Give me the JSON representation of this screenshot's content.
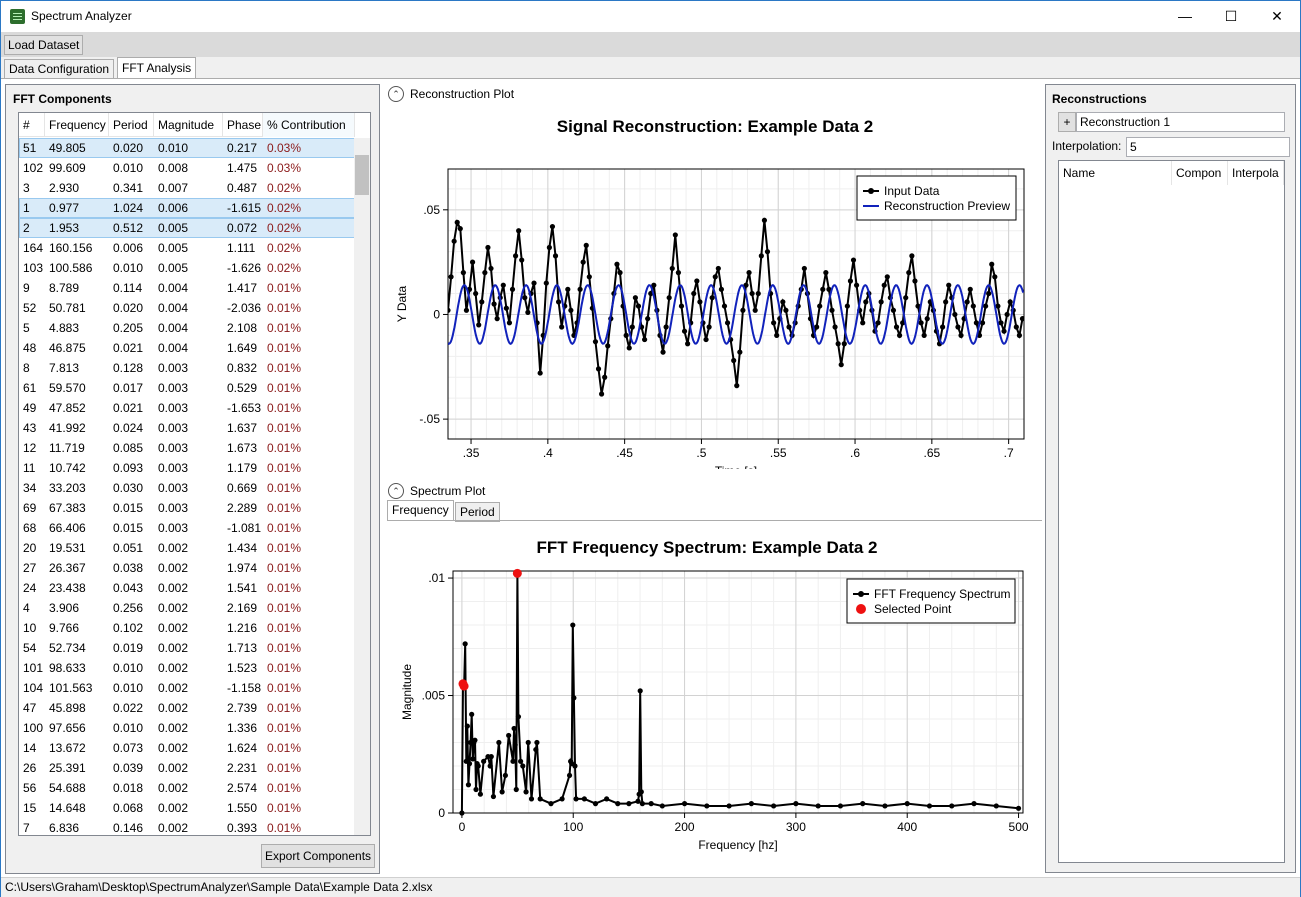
{
  "window": {
    "title": "Spectrum Analyzer",
    "min_glyph": "—",
    "max_glyph": "☐",
    "close_glyph": "✕"
  },
  "toolbar": {
    "load_label": "Load Dataset"
  },
  "tabs": [
    {
      "label": "Data Configuration"
    },
    {
      "label": "FFT Analysis"
    }
  ],
  "fft_panel": {
    "title": "FFT Components",
    "columns": [
      "#",
      "Frequency",
      "Period",
      "Magnitude",
      "Phase",
      "% Contribution"
    ],
    "rows": [
      [
        "51",
        "49.805",
        "0.020",
        "0.010",
        "0.217",
        "0.03%"
      ],
      [
        "102",
        "99.609",
        "0.010",
        "0.008",
        "1.475",
        "0.03%"
      ],
      [
        "3",
        "2.930",
        "0.341",
        "0.007",
        "0.487",
        "0.02%"
      ],
      [
        "1",
        "0.977",
        "1.024",
        "0.006",
        "-1.615",
        "0.02%"
      ],
      [
        "2",
        "1.953",
        "0.512",
        "0.005",
        "0.072",
        "0.02%"
      ],
      [
        "164",
        "160.156",
        "0.006",
        "0.005",
        "1.111",
        "0.02%"
      ],
      [
        "103",
        "100.586",
        "0.010",
        "0.005",
        "-1.626",
        "0.02%"
      ],
      [
        "9",
        "8.789",
        "0.114",
        "0.004",
        "1.417",
        "0.01%"
      ],
      [
        "52",
        "50.781",
        "0.020",
        "0.004",
        "-2.036",
        "0.01%"
      ],
      [
        "5",
        "4.883",
        "0.205",
        "0.004",
        "2.108",
        "0.01%"
      ],
      [
        "48",
        "46.875",
        "0.021",
        "0.004",
        "1.649",
        "0.01%"
      ],
      [
        "8",
        "7.813",
        "0.128",
        "0.003",
        "0.832",
        "0.01%"
      ],
      [
        "61",
        "59.570",
        "0.017",
        "0.003",
        "0.529",
        "0.01%"
      ],
      [
        "49",
        "47.852",
        "0.021",
        "0.003",
        "-1.653",
        "0.01%"
      ],
      [
        "43",
        "41.992",
        "0.024",
        "0.003",
        "1.637",
        "0.01%"
      ],
      [
        "12",
        "11.719",
        "0.085",
        "0.003",
        "1.673",
        "0.01%"
      ],
      [
        "11",
        "10.742",
        "0.093",
        "0.003",
        "1.179",
        "0.01%"
      ],
      [
        "34",
        "33.203",
        "0.030",
        "0.003",
        "0.669",
        "0.01%"
      ],
      [
        "69",
        "67.383",
        "0.015",
        "0.003",
        "2.289",
        "0.01%"
      ],
      [
        "68",
        "66.406",
        "0.015",
        "0.003",
        "-1.081",
        "0.01%"
      ],
      [
        "20",
        "19.531",
        "0.051",
        "0.002",
        "1.434",
        "0.01%"
      ],
      [
        "27",
        "26.367",
        "0.038",
        "0.002",
        "1.974",
        "0.01%"
      ],
      [
        "24",
        "23.438",
        "0.043",
        "0.002",
        "1.541",
        "0.01%"
      ],
      [
        "4",
        "3.906",
        "0.256",
        "0.002",
        "2.169",
        "0.01%"
      ],
      [
        "10",
        "9.766",
        "0.102",
        "0.002",
        "1.216",
        "0.01%"
      ],
      [
        "54",
        "52.734",
        "0.019",
        "0.002",
        "1.713",
        "0.01%"
      ],
      [
        "101",
        "98.633",
        "0.010",
        "0.002",
        "1.523",
        "0.01%"
      ],
      [
        "104",
        "101.563",
        "0.010",
        "0.002",
        "-1.158",
        "0.01%"
      ],
      [
        "47",
        "45.898",
        "0.022",
        "0.002",
        "2.739",
        "0.01%"
      ],
      [
        "100",
        "97.656",
        "0.010",
        "0.002",
        "1.336",
        "0.01%"
      ],
      [
        "14",
        "13.672",
        "0.073",
        "0.002",
        "1.624",
        "0.01%"
      ],
      [
        "26",
        "25.391",
        "0.039",
        "0.002",
        "2.231",
        "0.01%"
      ],
      [
        "56",
        "54.688",
        "0.018",
        "0.002",
        "2.574",
        "0.01%"
      ],
      [
        "15",
        "14.648",
        "0.068",
        "0.002",
        "1.550",
        "0.01%"
      ],
      [
        "7",
        "6.836",
        "0.146",
        "0.002",
        "0.393",
        "0.01%"
      ]
    ],
    "selected_rows": [
      0,
      3,
      4
    ],
    "export_label": "Export Components"
  },
  "recon_section": {
    "expander_label": "Reconstruction Plot"
  },
  "spectrum_section": {
    "expander_label": "Spectrum Plot",
    "tabs": [
      "Frequency",
      "Period"
    ]
  },
  "chart_data": [
    {
      "type": "line",
      "title": "Signal Reconstruction: Example Data 2",
      "xlabel": "Time [s]",
      "ylabel": "Y Data",
      "xlim": [
        0.335,
        0.71
      ],
      "ylim": [
        -0.0595,
        0.0695
      ],
      "xticks": [
        0.35,
        0.4,
        0.45,
        0.5,
        0.55,
        0.6,
        0.65,
        0.7
      ],
      "yticks": [
        -0.05,
        0,
        0.05
      ],
      "grid": true,
      "legend_position": "top-right",
      "series": [
        {
          "name": "Input Data",
          "color": "#000000",
          "markers": true,
          "x": [
            0.335,
            0.337,
            0.339,
            0.341,
            0.343,
            0.345,
            0.347,
            0.349,
            0.351,
            0.353,
            0.355,
            0.357,
            0.359,
            0.361,
            0.363,
            0.365,
            0.367,
            0.369,
            0.371,
            0.373,
            0.375,
            0.377,
            0.379,
            0.381,
            0.383,
            0.385,
            0.387,
            0.389,
            0.391,
            0.393,
            0.395,
            0.397,
            0.399,
            0.401,
            0.403,
            0.405,
            0.407,
            0.409,
            0.411,
            0.413,
            0.415,
            0.417,
            0.419,
            0.421,
            0.423,
            0.425,
            0.427,
            0.429,
            0.431,
            0.433,
            0.435,
            0.437,
            0.439,
            0.441,
            0.443,
            0.445,
            0.447,
            0.449,
            0.451,
            0.453,
            0.455,
            0.457,
            0.459,
            0.461,
            0.463,
            0.465,
            0.467,
            0.469,
            0.471,
            0.473,
            0.475,
            0.477,
            0.479,
            0.481,
            0.483,
            0.485,
            0.487,
            0.489,
            0.491,
            0.493,
            0.495,
            0.497,
            0.499,
            0.501,
            0.503,
            0.505,
            0.507,
            0.509,
            0.511,
            0.513,
            0.515,
            0.517,
            0.519,
            0.521,
            0.523,
            0.525,
            0.527,
            0.529,
            0.531,
            0.533,
            0.535,
            0.537,
            0.539,
            0.541,
            0.543,
            0.545,
            0.547,
            0.549,
            0.551,
            0.553,
            0.555,
            0.557,
            0.559,
            0.561,
            0.563,
            0.565,
            0.567,
            0.569,
            0.571,
            0.573,
            0.575,
            0.577,
            0.579,
            0.581,
            0.583,
            0.585,
            0.587,
            0.589,
            0.591,
            0.593,
            0.595,
            0.597,
            0.599,
            0.601,
            0.603,
            0.605,
            0.607,
            0.609,
            0.611,
            0.613,
            0.615,
            0.617,
            0.619,
            0.621,
            0.623,
            0.625,
            0.627,
            0.629,
            0.631,
            0.633,
            0.635,
            0.637,
            0.639,
            0.641,
            0.643,
            0.645,
            0.647,
            0.649,
            0.651,
            0.653,
            0.655,
            0.657,
            0.659,
            0.661,
            0.663,
            0.665,
            0.667,
            0.669,
            0.671,
            0.673,
            0.675,
            0.677,
            0.679,
            0.681,
            0.683,
            0.685,
            0.687,
            0.689,
            0.691,
            0.693,
            0.695,
            0.697,
            0.699,
            0.701,
            0.703,
            0.705,
            0.707,
            0.709
          ],
          "y": [
            0.002,
            0.018,
            0.035,
            0.044,
            0.041,
            0.02,
            0.002,
            0.012,
            0.025,
            0.01,
            -0.005,
            0.006,
            0.02,
            0.032,
            0.022,
            0.005,
            -0.002,
            0.008,
            0.014,
            0.003,
            -0.004,
            0.012,
            0.028,
            0.04,
            0.026,
            0.008,
            0.001,
            0.01,
            0.015,
            -0.004,
            -0.028,
            -0.01,
            0.015,
            0.032,
            0.042,
            0.028,
            0.006,
            -0.006,
            0.004,
            0.012,
            0.002,
            -0.01,
            -0.004,
            0.012,
            0.025,
            0.033,
            0.018,
            0.003,
            -0.013,
            -0.026,
            -0.038,
            -0.03,
            -0.015,
            -0.002,
            0.01,
            0.024,
            0.02,
            0.004,
            -0.01,
            -0.016,
            -0.006,
            0.008,
            0.004,
            -0.006,
            -0.012,
            -0.002,
            0.01,
            0.014,
            0.002,
            -0.01,
            -0.018,
            -0.006,
            0.008,
            0.022,
            0.038,
            0.02,
            0.004,
            -0.008,
            -0.014,
            -0.004,
            0.01,
            0.016,
            0.006,
            -0.004,
            -0.012,
            -0.006,
            0.008,
            0.018,
            0.022,
            0.012,
            0.004,
            -0.004,
            -0.012,
            -0.022,
            -0.034,
            -0.018,
            0.002,
            0.014,
            0.02,
            0.01,
            0.002,
            0.01,
            0.028,
            0.045,
            0.03,
            0.01,
            -0.004,
            -0.01,
            -0.002,
            0.006,
            0.002,
            -0.006,
            -0.01,
            -0.004,
            0.004,
            0.012,
            0.022,
            0.01,
            -0.002,
            -0.01,
            -0.006,
            0.004,
            0.012,
            0.02,
            0.012,
            0.002,
            -0.006,
            -0.014,
            -0.024,
            -0.014,
            0.004,
            0.016,
            0.026,
            0.014,
            0.002,
            -0.004,
            0.006,
            0.01,
            0.002,
            -0.008,
            -0.004,
            0.006,
            0.014,
            0.018,
            0.008,
            0.002,
            -0.006,
            -0.01,
            -0.004,
            0.008,
            0.02,
            0.028,
            0.016,
            0.004,
            -0.004,
            -0.01,
            -0.002,
            0.006,
            0.002,
            -0.008,
            -0.014,
            -0.006,
            0.006,
            0.014,
            0.008,
            0.0,
            -0.006,
            -0.01,
            -0.002,
            0.006,
            0.012,
            0.004,
            -0.004,
            -0.01,
            -0.004,
            0.004,
            0.01,
            0.024,
            0.018,
            0.004,
            -0.004,
            -0.008,
            0.0,
            0.006,
            0.002,
            -0.006,
            -0.01,
            -0.002
          ]
        },
        {
          "name": "Reconstruction Preview",
          "color": "#1122bb",
          "markers": false,
          "amplitude": 0.014,
          "frequency_hz": 49.805,
          "phase": 0.217
        }
      ]
    },
    {
      "type": "line",
      "title": "FFT Frequency Spectrum: Example Data 2",
      "xlabel": "Frequency [hz]",
      "ylabel": "Magnitude",
      "xlim": [
        -8,
        504
      ],
      "ylim": [
        0,
        0.0103
      ],
      "xticks": [
        0,
        100,
        200,
        300,
        400,
        500
      ],
      "yticks": [
        0,
        0.005,
        0.01
      ],
      "grid": true,
      "legend_position": "top-right",
      "series": [
        {
          "name": "FFT Frequency Spectrum",
          "color": "#000000",
          "markers": true,
          "x": [
            0,
            0.977,
            1.953,
            2.93,
            3.906,
            4.883,
            5.859,
            6.836,
            7.813,
            8.789,
            9.766,
            10.742,
            11.719,
            12.695,
            13.672,
            14.648,
            16.602,
            19.531,
            23.438,
            25.391,
            26.367,
            28.32,
            33.203,
            36.133,
            39.063,
            41.992,
            45.898,
            46.875,
            47.852,
            48.828,
            49.805,
            50.781,
            52.734,
            54.688,
            57.617,
            59.57,
            62.5,
            66.406,
            67.383,
            70.313,
            80,
            90,
            96.68,
            97.656,
            98.633,
            99.609,
            100.586,
            101.563,
            102.539,
            110,
            120,
            130,
            140,
            150,
            158.203,
            159.18,
            160.156,
            161.133,
            162.109,
            170,
            180,
            200,
            220,
            240,
            260,
            280,
            300,
            320,
            340,
            360,
            380,
            400,
            420,
            440,
            460,
            480,
            500
          ],
          "y": [
            0,
            0.0055,
            0.0054,
            0.0072,
            0.0022,
            0.0037,
            0.0012,
            0.0021,
            0.003,
            0.0042,
            0.0023,
            0.003,
            0.0031,
            0.001,
            0.0021,
            0.002,
            0.0008,
            0.0022,
            0.0024,
            0.002,
            0.0024,
            0.0007,
            0.003,
            0.0009,
            0.0016,
            0.0033,
            0.0022,
            0.0036,
            0.0029,
            0.001,
            0.0102,
            0.0041,
            0.0022,
            0.002,
            0.0009,
            0.003,
            0.0006,
            0.0027,
            0.003,
            0.0006,
            0.0004,
            0.0006,
            0.0016,
            0.0022,
            0.0021,
            0.008,
            0.0049,
            0.002,
            0.0006,
            0.0006,
            0.0004,
            0.0006,
            0.0004,
            0.0004,
            0.0005,
            0.0008,
            0.0052,
            0.0009,
            0.0004,
            0.0004,
            0.0003,
            0.0004,
            0.0003,
            0.0003,
            0.0004,
            0.0003,
            0.0004,
            0.0003,
            0.0003,
            0.0004,
            0.0003,
            0.0004,
            0.0003,
            0.0003,
            0.0004,
            0.0003,
            0.0002
          ]
        },
        {
          "name": "Selected Point",
          "color": "#ee1111",
          "markers": true,
          "line": false,
          "x": [
            0.977,
            1.953,
            49.805
          ],
          "y": [
            0.0055,
            0.0054,
            0.0102
          ]
        }
      ]
    }
  ],
  "recon_panel": {
    "title": "Reconstructions",
    "add_label": "+",
    "item_name": "Reconstruction 1",
    "interp_label": "Interpolation:",
    "interp_value": "5",
    "list_columns": [
      "Name",
      "Compon",
      "Interpola"
    ]
  },
  "status": {
    "path": "C:\\Users\\Graham\\Desktop\\SpectrumAnalyzer\\Sample Data\\Example Data 2.xlsx"
  }
}
